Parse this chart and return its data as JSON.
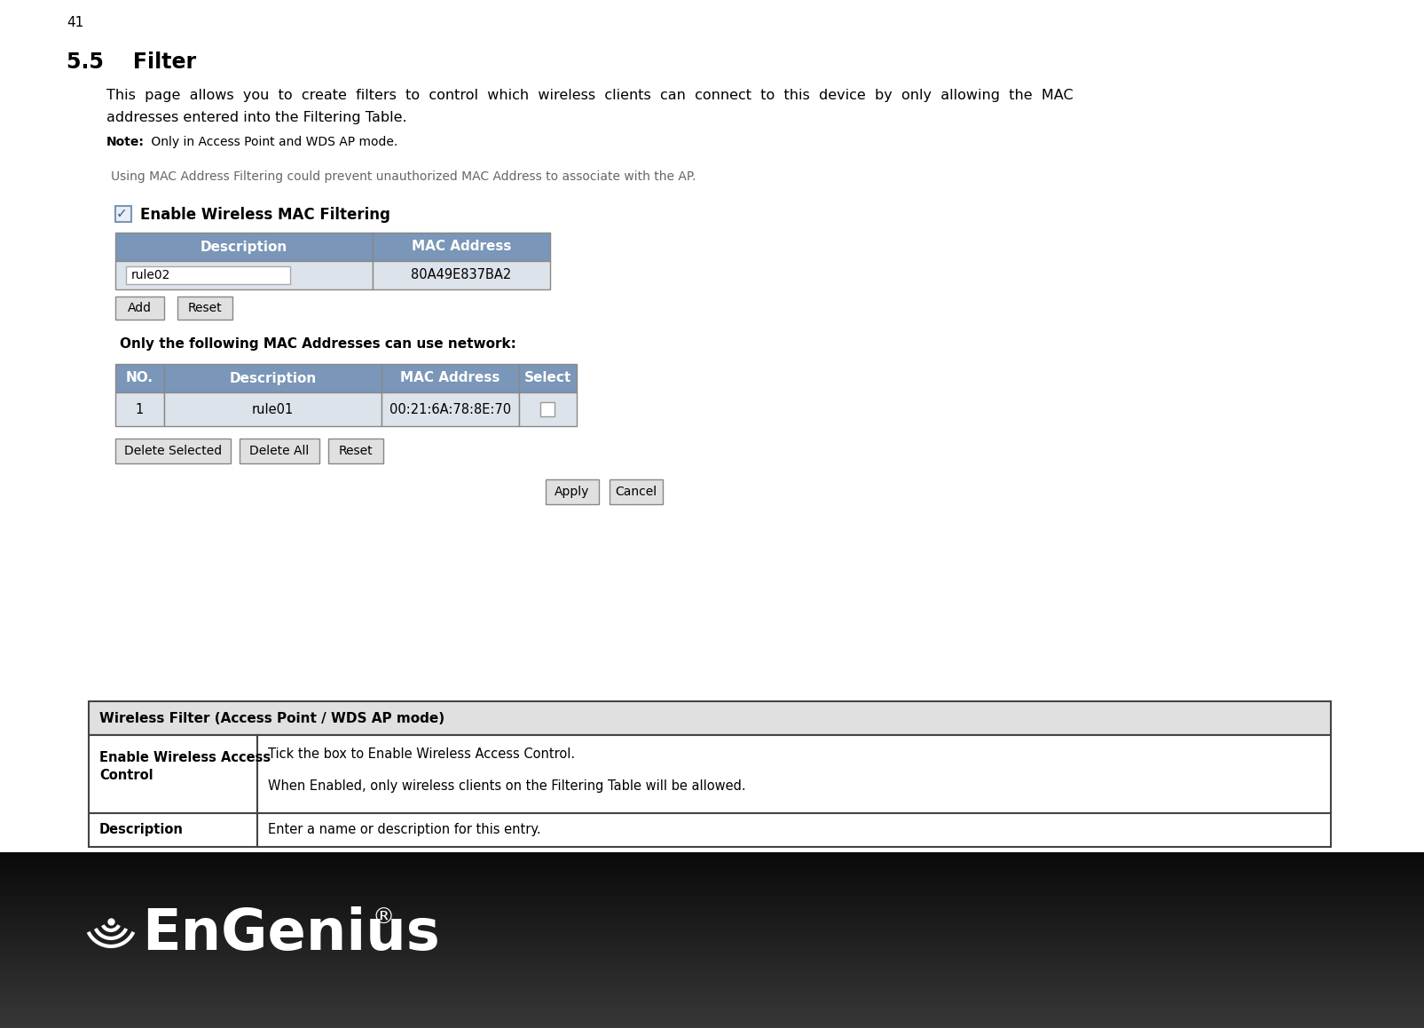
{
  "page_number": "41",
  "section": "5.5    Filter",
  "description_line1": "This  page  allows  you  to  create  filters  to  control  which  wireless  clients  can  connect  to  this  device  by  only  allowing  the  MAC",
  "description_line2": "addresses entered into the Filtering Table.",
  "note_bold": "Note:",
  "note_rest": " Only in Access Point and WDS AP mode.",
  "ui_info_text": "Using MAC Address Filtering could prevent unauthorized MAC Address to associate with the AP.",
  "checkbox_label": "Enable Wireless MAC Filtering",
  "table1_headers": [
    "Description",
    "MAC Address"
  ],
  "table1_row": [
    "rule02",
    "80A49E837BA2"
  ],
  "buttons_row1": [
    "Add",
    "Reset"
  ],
  "filter_label": "Only the following MAC Addresses can use network:",
  "table2_headers": [
    "NO.",
    "Description",
    "MAC Address",
    "Select"
  ],
  "table2_row": [
    "1",
    "rule01",
    "00:21:6A:78:8E:70",
    ""
  ],
  "buttons_row2": [
    "Delete Selected",
    "Delete All",
    "Reset"
  ],
  "apply_buttons": [
    "Apply",
    "Cancel"
  ],
  "info_table_header": "Wireless Filter (Access Point / WDS AP mode)",
  "info_row1_left": "Enable Wireless Access\nControl",
  "info_row1_right_line1": "Tick the box to Enable Wireless Access Control.",
  "info_row1_right_line2": "When Enabled, only wireless clients on the Filtering Table will be allowed.",
  "info_row2_left": "Description",
  "info_row2_right": "Enter a name or description for this entry.",
  "header_color": "#7a96b8",
  "table_row_bg": "#dce4ef",
  "table_data_bg": "#e8ecf0",
  "page_bg": "#ffffff",
  "info_header_bg": "#e0e0e0",
  "footer_dark": "#1c1c1c",
  "footer_mid": "#3a3a3a"
}
